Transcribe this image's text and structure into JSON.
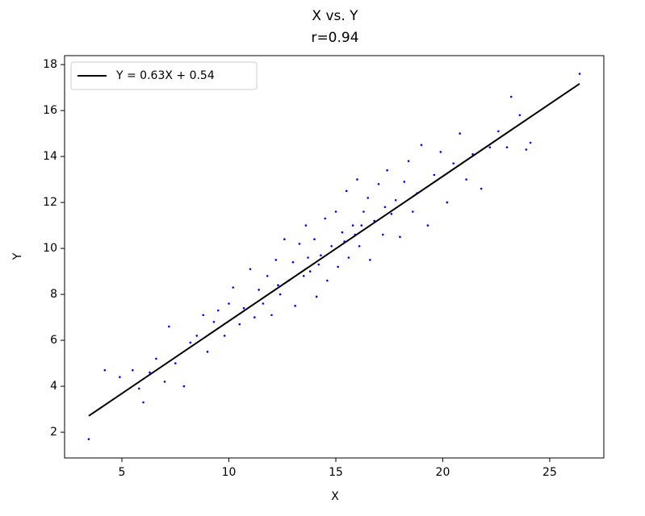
{
  "chart_data": {
    "type": "scatter",
    "title": "X vs. Y",
    "subtitle": "r=0.94",
    "x_label": "X",
    "y_label": "Y",
    "xlim": [
      2.32,
      27.53
    ],
    "ylim": [
      0.88,
      18.39
    ],
    "xticks": [
      5,
      10,
      15,
      20,
      25
    ],
    "yticks": [
      2,
      4,
      6,
      8,
      10,
      12,
      14,
      16,
      18
    ],
    "grid": false,
    "legend": "upper left",
    "color": "#0000ff",
    "x": [
      3.45,
      4.2,
      4.9,
      5.5,
      5.8,
      6.0,
      6.3,
      6.6,
      7.0,
      7.2,
      7.5,
      7.9,
      8.2,
      8.5,
      8.8,
      9.0,
      9.3,
      9.5,
      9.8,
      10.0,
      10.2,
      10.5,
      10.7,
      11.0,
      11.2,
      11.4,
      11.6,
      11.8,
      12.0,
      12.2,
      12.4,
      12.6,
      12.8,
      13.0,
      13.1,
      13.3,
      13.5,
      13.6,
      13.8,
      14.0,
      14.1,
      14.3,
      14.5,
      14.6,
      14.8,
      15.0,
      15.1,
      15.3,
      15.5,
      15.6,
      15.8,
      16.0,
      16.1,
      16.3,
      16.5,
      16.6,
      16.8,
      17.0,
      17.2,
      17.4,
      17.6,
      17.8,
      18.0,
      18.2,
      18.4,
      18.6,
      18.8,
      19.0,
      19.3,
      19.6,
      19.9,
      20.2,
      20.5,
      20.8,
      21.1,
      21.4,
      21.8,
      22.2,
      22.6,
      23.0,
      23.2,
      23.6,
      23.9,
      24.1,
      26.4,
      12.3,
      14.2,
      15.4,
      16.2,
      17.3,
      13.7,
      15.9
    ],
    "values": [
      1.7,
      4.7,
      4.4,
      4.7,
      3.9,
      3.3,
      4.6,
      5.2,
      4.2,
      6.6,
      5.0,
      4.0,
      5.9,
      6.2,
      7.1,
      5.5,
      6.8,
      7.3,
      6.2,
      7.6,
      8.3,
      6.7,
      7.4,
      9.1,
      7.0,
      8.2,
      7.6,
      8.8,
      7.1,
      9.5,
      8.0,
      10.4,
      8.6,
      9.4,
      7.5,
      10.2,
      8.8,
      11.0,
      9.0,
      10.4,
      7.9,
      9.7,
      11.3,
      8.6,
      10.1,
      11.6,
      9.2,
      10.7,
      12.5,
      9.6,
      11.0,
      13.0,
      10.1,
      11.6,
      12.2,
      9.5,
      11.2,
      12.8,
      10.6,
      13.4,
      11.5,
      12.1,
      10.5,
      12.9,
      13.8,
      11.6,
      12.4,
      14.5,
      11.0,
      13.2,
      14.2,
      12.0,
      13.7,
      15.0,
      13.0,
      14.1,
      12.6,
      14.4,
      15.1,
      14.4,
      16.6,
      15.8,
      14.3,
      14.6,
      17.6,
      8.4,
      9.3,
      10.3,
      11.0,
      11.8,
      9.6,
      10.6
    ],
    "fit": {
      "name": "Y = 0.63X + 0.54",
      "color": "#000000",
      "x": [
        3.45,
        26.4
      ],
      "values": [
        2.71,
        17.17
      ]
    }
  }
}
